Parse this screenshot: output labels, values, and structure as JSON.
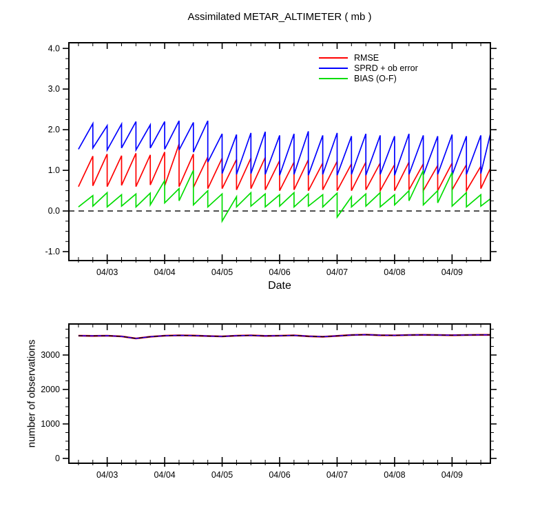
{
  "page": {
    "background": "#ffffff"
  },
  "chart_data": [
    {
      "type": "line",
      "title": "Assimilated METAR_ALTIMETER ( mb )",
      "xlabel": "Date",
      "ylabel": "",
      "x_unit": "hours since 04/02 00Z",
      "xlim": [
        8,
        184
      ],
      "ylim": [
        -1.22,
        4.14
      ],
      "x_minor_step": 6,
      "x_ticks": [
        {
          "t": 24,
          "label": "04/03"
        },
        {
          "t": 48,
          "label": "04/04"
        },
        {
          "t": 72,
          "label": "04/05"
        },
        {
          "t": 96,
          "label": "04/06"
        },
        {
          "t": 120,
          "label": "04/07"
        },
        {
          "t": 144,
          "label": "04/08"
        },
        {
          "t": 168,
          "label": "04/09"
        }
      ],
      "y_ticks": [
        {
          "v": -1.0,
          "label": "-1.0"
        },
        {
          "v": 0.0,
          "label": "0.0"
        },
        {
          "v": 1.0,
          "label": "1.0"
        },
        {
          "v": 2.0,
          "label": "2.0"
        },
        {
          "v": 3.0,
          "label": "3.0"
        },
        {
          "v": 4.0,
          "label": "4.0"
        }
      ],
      "y_minor_step": 0.25,
      "zero_line": {
        "y": 0.0,
        "color": "#000000",
        "style": "dashed"
      },
      "legend": [
        {
          "label": "RMSE",
          "color": "#ff0000"
        },
        {
          "label": "SPRD + ob error",
          "color": "#0000ff"
        },
        {
          "label": "BIAS (O-F)",
          "color": "#00dd00"
        }
      ],
      "x": [
        12,
        18,
        18,
        24,
        24,
        30,
        30,
        36,
        36,
        42,
        42,
        48,
        48,
        54,
        54,
        60,
        60,
        66,
        66,
        72,
        72,
        78,
        78,
        84,
        84,
        90,
        90,
        96,
        96,
        102,
        102,
        108,
        108,
        114,
        114,
        120,
        120,
        126,
        126,
        132,
        132,
        138,
        138,
        144,
        144,
        150,
        150,
        156,
        156,
        162,
        162,
        168,
        168,
        174,
        174,
        180,
        180,
        184
      ],
      "series": [
        {
          "name": "rmse",
          "color": "#ff0000",
          "width": 1.7,
          "y": [
            0.6,
            1.35,
            0.62,
            1.4,
            0.6,
            1.36,
            0.63,
            1.42,
            0.6,
            1.38,
            0.64,
            1.45,
            0.62,
            1.65,
            0.6,
            1.4,
            0.58,
            1.33,
            0.55,
            1.3,
            0.55,
            1.27,
            0.52,
            1.3,
            0.55,
            1.32,
            0.52,
            1.24,
            0.5,
            1.2,
            0.52,
            1.26,
            0.5,
            1.18,
            0.52,
            1.22,
            0.5,
            1.16,
            0.5,
            1.2,
            0.52,
            1.18,
            0.5,
            1.14,
            0.5,
            1.2,
            0.52,
            1.16,
            0.5,
            1.12,
            0.5,
            1.18,
            0.52,
            1.14,
            0.5,
            1.1,
            0.55,
            1.05
          ]
        },
        {
          "name": "sprd-plus-ob-error",
          "color": "#0000ff",
          "width": 1.7,
          "y": [
            1.52,
            2.15,
            1.55,
            2.1,
            1.5,
            2.14,
            1.55,
            2.2,
            1.5,
            2.12,
            1.55,
            2.2,
            1.52,
            2.22,
            1.5,
            2.18,
            1.45,
            2.22,
            1.2,
            1.9,
            0.92,
            1.88,
            0.9,
            1.92,
            0.92,
            1.95,
            0.9,
            1.86,
            0.88,
            1.9,
            0.9,
            1.96,
            0.88,
            1.86,
            0.9,
            1.92,
            0.88,
            1.84,
            0.9,
            1.9,
            0.88,
            1.86,
            0.9,
            1.84,
            0.88,
            1.9,
            0.9,
            1.86,
            0.88,
            1.84,
            0.9,
            1.88,
            0.88,
            1.84,
            0.9,
            1.86,
            0.92,
            1.9
          ]
        },
        {
          "name": "bias-o-minus-f",
          "color": "#00dd00",
          "width": 1.7,
          "y": [
            0.1,
            0.38,
            0.12,
            0.45,
            0.1,
            0.4,
            0.12,
            0.42,
            0.1,
            0.44,
            0.15,
            0.75,
            0.2,
            0.55,
            0.25,
            1.0,
            0.15,
            0.5,
            0.1,
            0.42,
            -0.25,
            0.35,
            0.1,
            0.45,
            0.12,
            0.42,
            0.1,
            0.4,
            0.12,
            0.45,
            0.1,
            0.42,
            0.12,
            0.4,
            0.1,
            0.44,
            -0.15,
            0.35,
            0.1,
            0.42,
            0.12,
            0.45,
            0.1,
            0.4,
            0.15,
            0.5,
            0.25,
            1.0,
            0.15,
            0.5,
            0.2,
            0.95,
            0.12,
            0.45,
            0.1,
            0.4,
            0.12,
            0.3
          ]
        }
      ]
    },
    {
      "type": "line",
      "title": "",
      "xlabel": "",
      "ylabel": "number of observations",
      "xlim": [
        8,
        184
      ],
      "ylim": [
        -140,
        3900
      ],
      "x_minor_step": 6,
      "x_ticks": [
        {
          "t": 24,
          "label": "04/03"
        },
        {
          "t": 48,
          "label": "04/04"
        },
        {
          "t": 72,
          "label": "04/05"
        },
        {
          "t": 96,
          "label": "04/06"
        },
        {
          "t": 120,
          "label": "04/07"
        },
        {
          "t": 144,
          "label": "04/08"
        },
        {
          "t": 168,
          "label": "04/09"
        }
      ],
      "y_ticks": [
        {
          "v": 0,
          "label": "0"
        },
        {
          "v": 1000,
          "label": "1000"
        },
        {
          "v": 2000,
          "label": "2000"
        },
        {
          "v": 3000,
          "label": "3000"
        }
      ],
      "y_minor_step": 250,
      "x": [
        12,
        18,
        24,
        30,
        36,
        42,
        48,
        54,
        60,
        66,
        72,
        78,
        84,
        90,
        96,
        102,
        108,
        114,
        120,
        126,
        132,
        138,
        144,
        150,
        156,
        162,
        168,
        174,
        180,
        184
      ],
      "y": [
        3560,
        3555,
        3560,
        3540,
        3480,
        3530,
        3560,
        3570,
        3565,
        3550,
        3540,
        3560,
        3570,
        3555,
        3560,
        3570,
        3545,
        3530,
        3555,
        3580,
        3590,
        3575,
        3570,
        3580,
        3585,
        3580,
        3575,
        3580,
        3585,
        3585
      ],
      "lines": [
        {
          "name": "obs-count-red",
          "color": "#ff0000",
          "width": 2.6
        },
        {
          "name": "obs-count-blue",
          "color": "#0000ff",
          "width": 1.5
        },
        {
          "name": "obs-count-dashed",
          "color": "#000000",
          "width": 1.2,
          "dash": "6 5"
        }
      ]
    }
  ]
}
